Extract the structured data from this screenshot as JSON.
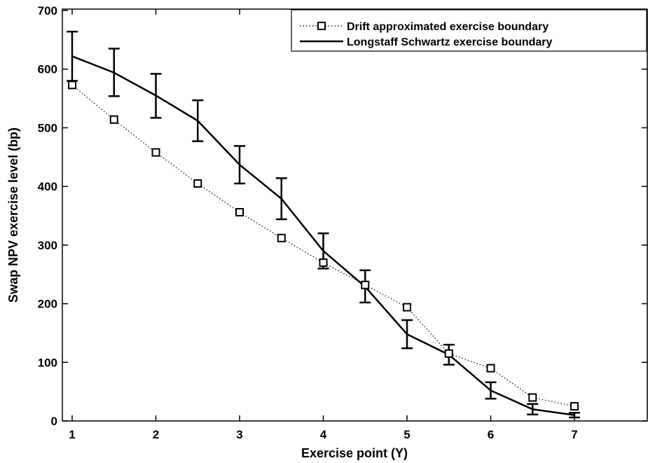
{
  "chart_data": {
    "type": "line",
    "title": "",
    "xlabel": "Exercise point (Y)",
    "ylabel": "Swap NPV exercise level (bp)",
    "xlim": [
      1,
      7
    ],
    "ylim": [
      0,
      700
    ],
    "xticks": [
      1,
      2,
      3,
      4,
      5,
      6,
      7
    ],
    "yticks": [
      0,
      100,
      200,
      300,
      400,
      500,
      600,
      700
    ],
    "grid": false,
    "legend_position": "top-right",
    "series": [
      {
        "name": "Drift approximated exercise boundary",
        "style": "dotted-square-markers",
        "x": [
          1,
          1.5,
          2,
          2.5,
          3,
          3.5,
          4,
          4.5,
          5,
          5.5,
          6,
          6.5,
          7
        ],
        "y": [
          573,
          514,
          458,
          405,
          356,
          312,
          270,
          232,
          194,
          115,
          90,
          40,
          25
        ]
      },
      {
        "name": "Longstaff Schwartz exercise boundary",
        "style": "solid-with-error-bars",
        "x": [
          1,
          1.5,
          2,
          2.5,
          3,
          3.5,
          4,
          4.5,
          5,
          5.5,
          6,
          6.5,
          7
        ],
        "y": [
          622,
          594,
          555,
          512,
          437,
          379,
          290,
          229,
          148,
          113,
          52,
          20,
          10
        ],
        "err_low": [
          580,
          554,
          517,
          477,
          405,
          344,
          260,
          202,
          124,
          96,
          38,
          11,
          6
        ],
        "err_high": [
          664,
          635,
          592,
          547,
          469,
          414,
          320,
          257,
          172,
          130,
          66,
          29,
          14
        ]
      }
    ]
  },
  "legend": {
    "items": [
      "Drift approximated exercise boundary",
      "Longstaff Schwartz exercise boundary"
    ]
  },
  "colors": {
    "line": "#000000",
    "background": "#ffffff"
  }
}
